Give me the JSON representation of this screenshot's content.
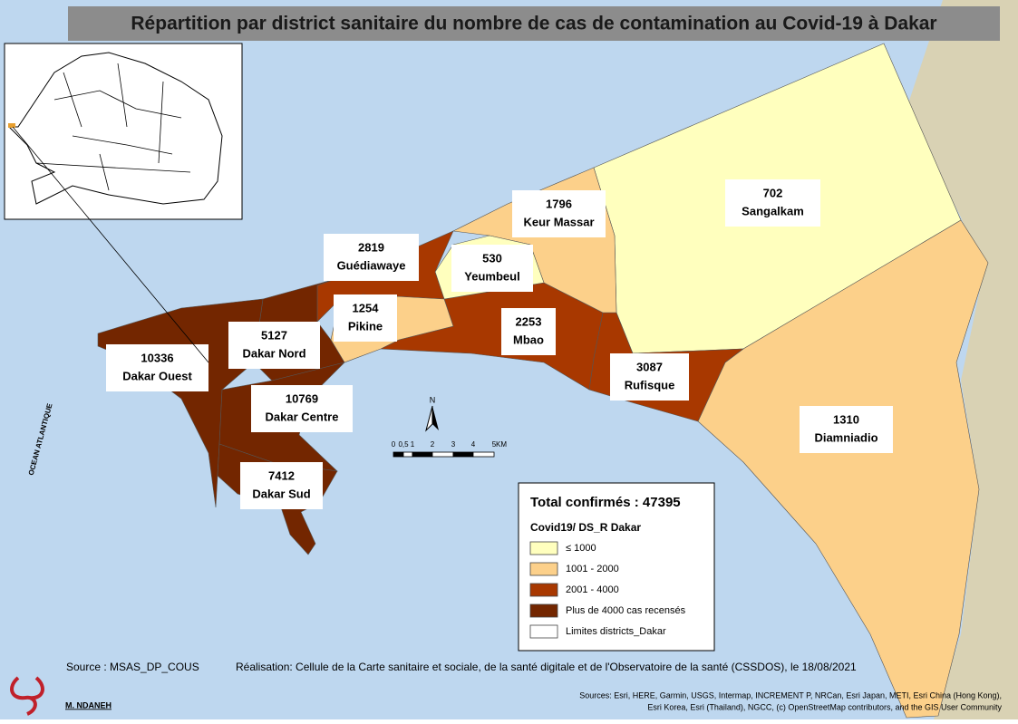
{
  "title": "Répartition par district sanitaire du nombre de cas de contamination au Covid-19 à Dakar",
  "districts": [
    {
      "name": "Sangalkam",
      "cases": 702,
      "color": "#ffffbe"
    },
    {
      "name": "Diamniadio",
      "cases": 1310,
      "color": "#fcd08a"
    },
    {
      "name": "Rufisque",
      "cases": 3087,
      "color": "#a83800"
    },
    {
      "name": "Mbao",
      "cases": 2253,
      "color": "#a83800"
    },
    {
      "name": "Keur Massar",
      "cases": 1796,
      "color": "#fcd08a"
    },
    {
      "name": "Yeumbeul",
      "cases": 530,
      "color": "#ffffbe"
    },
    {
      "name": "Guédiawaye",
      "cases": 2819,
      "color": "#a83800"
    },
    {
      "name": "Pikine",
      "cases": 1254,
      "color": "#fcd08a"
    },
    {
      "name": "Dakar Nord",
      "cases": 5127,
      "color": "#732600"
    },
    {
      "name": "Dakar Ouest",
      "cases": 10336,
      "color": "#732600"
    },
    {
      "name": "Dakar Centre",
      "cases": 10769,
      "color": "#732600"
    },
    {
      "name": "Dakar Sud",
      "cases": 7412,
      "color": "#732600"
    }
  ],
  "legend": {
    "total_label": "Total confirmés :",
    "total": 47395,
    "title": "Covid19/ DS_R Dakar",
    "items": [
      {
        "label": "≤ 1000",
        "color": "#ffffbe"
      },
      {
        "label": "1001 - 2000",
        "color": "#fcd08a"
      },
      {
        "label": "2001 - 4000",
        "color": "#a83800"
      },
      {
        "label": "Plus de 4000 cas recensés",
        "color": "#732600"
      },
      {
        "label": "Limites districts_Dakar",
        "color": "#ffffff"
      }
    ]
  },
  "ocean_label": "OCEAN ATLANTIQUE",
  "north": "N",
  "scale_labels": [
    "0",
    "0,5",
    "1",
    "2",
    "3",
    "4",
    "5",
    "KM"
  ],
  "source": "Source : MSAS_DP_COUS",
  "realisation": "Réalisation: Cellule de la Carte sanitaire et sociale, de la santé digitale et de l'Observatoire de la santé (CSSDOS), le 18/08/2021",
  "credits": [
    "Sources: Esri, HERE, Garmin, USGS, Intermap, INCREMENT P, NRCan, Esri Japan, METI, Esri China (Hong Kong),",
    "Esri Korea, Esri (Thailand), NGCC, (c) OpenStreetMap contributors, and the GIS User Community"
  ],
  "author": "M. NDANEH"
}
